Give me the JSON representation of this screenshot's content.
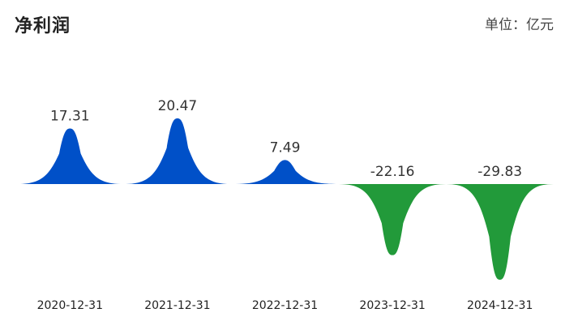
{
  "header": {
    "title": "净利润",
    "unit": "单位：亿元"
  },
  "chart_data": {
    "type": "area",
    "categories": [
      "2020-12-31",
      "2021-12-31",
      "2022-12-31",
      "2023-12-31",
      "2024-12-31"
    ],
    "values": [
      17.31,
      20.47,
      7.49,
      -22.16,
      -29.83
    ],
    "value_labels": [
      "17.31",
      "20.47",
      "7.49",
      "-22.16",
      "-29.83"
    ],
    "title": "净利润",
    "unit": "单位：亿元",
    "colors": {
      "positive": "#0050c8",
      "negative": "#229a3a"
    },
    "grid": false
  }
}
